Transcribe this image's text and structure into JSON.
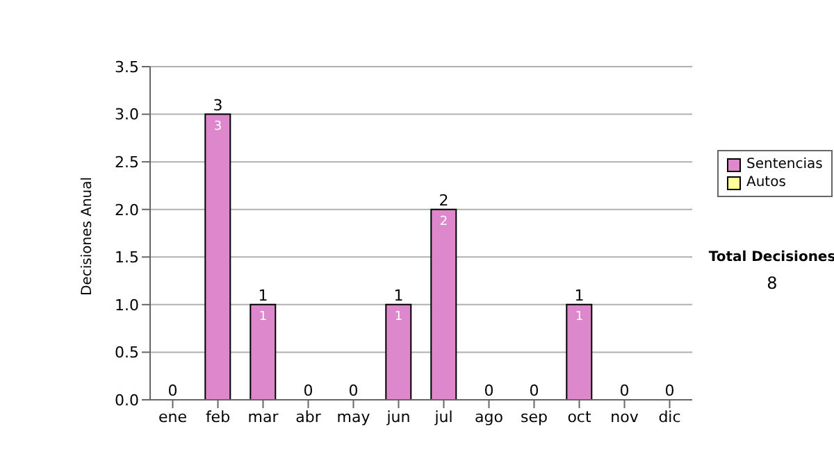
{
  "chart_data": {
    "type": "bar",
    "stacked": true,
    "ylabel": "Decisiones Anual",
    "categories": [
      "ene",
      "feb",
      "mar",
      "abr",
      "may",
      "jun",
      "jul",
      "ago",
      "sep",
      "oct",
      "nov",
      "dic"
    ],
    "series": [
      {
        "name": "Sentencias",
        "color": "#dd88cc",
        "values": [
          0,
          3,
          1,
          0,
          0,
          1,
          2,
          0,
          0,
          1,
          0,
          0
        ],
        "value_labels": [
          null,
          "3",
          "1",
          null,
          null,
          "1",
          "2",
          null,
          null,
          "1",
          null,
          null
        ]
      },
      {
        "name": "Autos",
        "color": "#ffff99",
        "values": [
          0,
          0,
          0,
          0,
          0,
          0,
          0,
          0,
          0,
          0,
          0,
          0
        ]
      }
    ],
    "totals": [
      "0",
      "3",
      "1",
      "0",
      "0",
      "1",
      "2",
      "0",
      "0",
      "1",
      "0",
      "0"
    ],
    "ylim": [
      0,
      3.5
    ],
    "yticks": [
      {
        "value": 0,
        "label": "0.0"
      },
      {
        "value": 0.5,
        "label": "0.5"
      },
      {
        "value": 1,
        "label": "1.0"
      },
      {
        "value": 1.5,
        "label": "1.5"
      },
      {
        "value": 2,
        "label": "2.0"
      },
      {
        "value": 2.5,
        "label": "2.5"
      },
      {
        "value": 3,
        "label": "3.0"
      },
      {
        "value": 3.5,
        "label": "3.5"
      }
    ],
    "grid": "y",
    "legend": "right",
    "annotations": [
      "Total Decisiones",
      "8"
    ]
  }
}
